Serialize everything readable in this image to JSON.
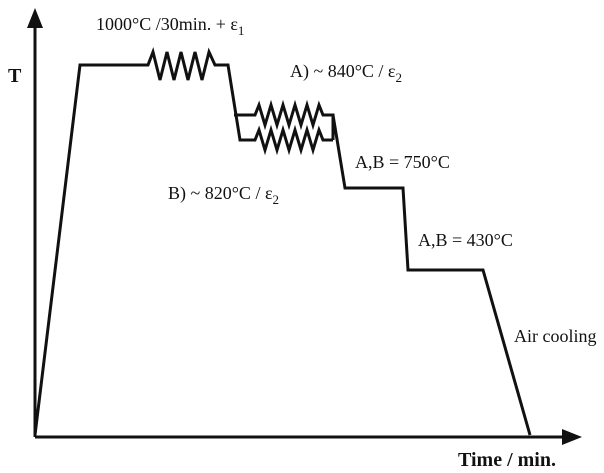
{
  "axes": {
    "y_label": "T",
    "x_label": "Time / min."
  },
  "labels": {
    "reheat": {
      "text": "1000°C /30min. + ε",
      "sub": "1"
    },
    "pass_a": {
      "text": "A) ~ 840°C / ε",
      "sub": "2"
    },
    "pass_b": {
      "text": "B) ~ 820°C / ε",
      "sub": "2"
    },
    "hold_750": "A,B = 750°C",
    "hold_430": "A,B = 430°C",
    "cooling": "Air cooling"
  }
}
